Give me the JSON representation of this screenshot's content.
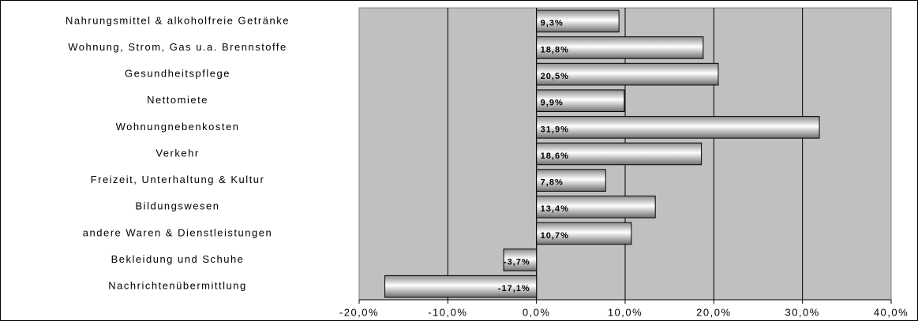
{
  "chart_data": {
    "type": "bar",
    "orientation": "horizontal",
    "categories": [
      "Nahrungsmittel & alkoholfreie Getränke",
      "Wohnung, Strom, Gas u.a. Brennstoffe",
      "Gesundheitspflege",
      "Nettomiete",
      "Wohnungnebenkosten",
      "Verkehr",
      "Freizeit, Unterhaltung & Kultur",
      "Bildungswesen",
      "andere Waren & Dienstleistungen",
      "Bekleidung und Schuhe",
      "Nachrichtenübermittlung"
    ],
    "values": [
      9.3,
      18.8,
      20.5,
      9.9,
      31.9,
      18.6,
      7.8,
      13.4,
      10.7,
      -3.7,
      -17.1
    ],
    "value_labels": [
      "9,3%",
      "18,8%",
      "20,5%",
      "9,9%",
      "31,9%",
      "18,6%",
      "7,8%",
      "13,4%",
      "10,7%",
      "-3,7%",
      "-17,1%"
    ],
    "xlim": [
      -20,
      40
    ],
    "xticks": [
      {
        "value": -20,
        "label": "-20,0%"
      },
      {
        "value": -10,
        "label": "-10,0%"
      },
      {
        "value": 0,
        "label": "0,0%"
      },
      {
        "value": 10,
        "label": "10,0%"
      },
      {
        "value": 20,
        "label": "20,0%"
      },
      {
        "value": 30,
        "label": "30,0%"
      },
      {
        "value": 40,
        "label": "40,0%"
      }
    ],
    "grid": true,
    "plot_background": "#c0c0c0"
  }
}
